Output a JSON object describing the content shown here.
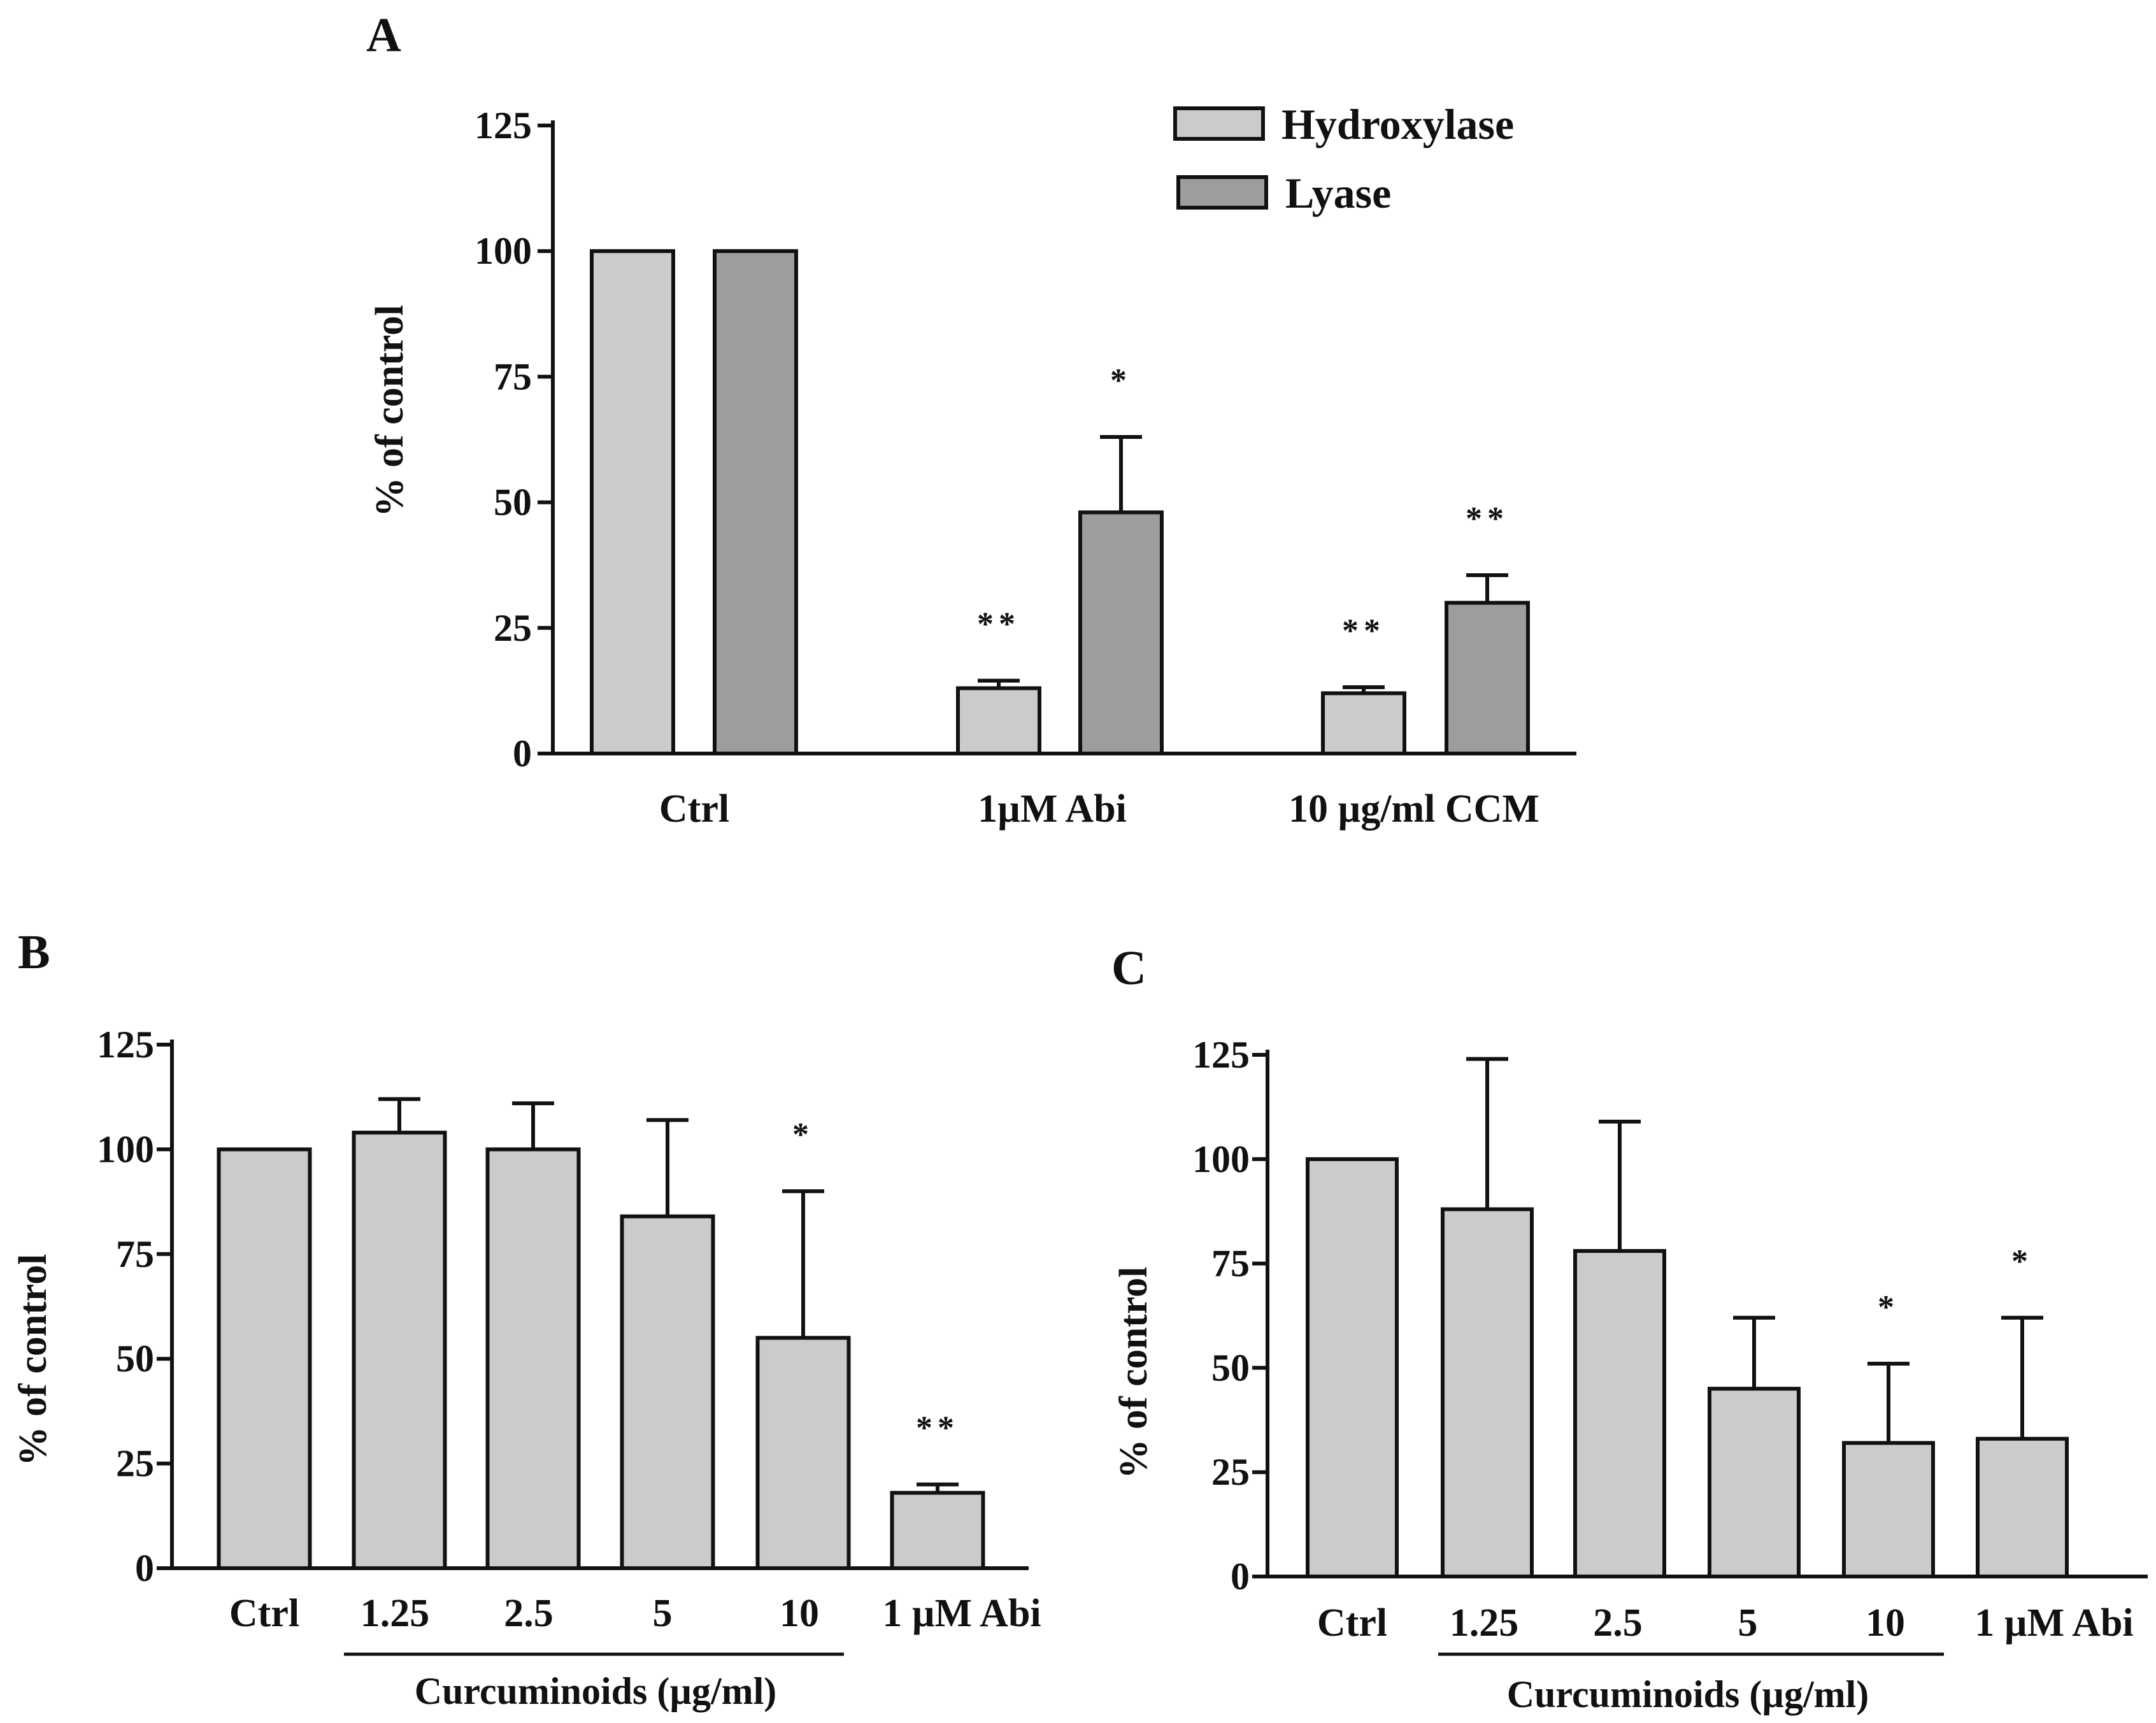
{
  "colors": {
    "hydroxylase": "#cbcbcb",
    "lyase": "#9d9d9d",
    "axis": "#111111"
  },
  "chart_data": [
    {
      "panel": "A",
      "type": "bar",
      "ylabel": "% of control",
      "ylim": [
        0,
        125
      ],
      "yticks": [
        "0",
        "25",
        "50",
        "75",
        "100",
        "125"
      ],
      "categories": [
        "Ctrl",
        "1µM Abi",
        "10 µg/ml CCM"
      ],
      "legend_position": "top-right",
      "series": [
        {
          "name": "Hydroxylase",
          "values": [
            100,
            13,
            12
          ],
          "errors": [
            0,
            1.5,
            1.2
          ],
          "annotations": [
            "",
            "**",
            "**"
          ]
        },
        {
          "name": "Lyase",
          "values": [
            100,
            48,
            30
          ],
          "errors": [
            0,
            15,
            5.5
          ],
          "annotations": [
            "",
            "*",
            "**"
          ]
        }
      ]
    },
    {
      "panel": "B",
      "type": "bar",
      "ylabel": "% of control",
      "ylim": [
        0,
        125
      ],
      "yticks": [
        "0",
        "25",
        "50",
        "75",
        "100",
        "125"
      ],
      "categories": [
        "Ctrl",
        "1.25",
        "2.5",
        "5",
        "10",
        "1 µM Abi"
      ],
      "group_label": "Curcuminoids (µg/ml)",
      "series": [
        {
          "name": "",
          "values": [
            100,
            104,
            100,
            84,
            55,
            18
          ],
          "errors": [
            0,
            8,
            11,
            23,
            35,
            2
          ],
          "annotations": [
            "",
            "",
            "",
            "",
            "*",
            "**"
          ]
        }
      ]
    },
    {
      "panel": "C",
      "type": "bar",
      "ylabel": "% of control",
      "ylim": [
        0,
        125
      ],
      "yticks": [
        "0",
        "25",
        "50",
        "75",
        "100",
        "125"
      ],
      "categories": [
        "Ctrl",
        "1.25",
        "2.5",
        "5",
        "10",
        "1 µM Abi"
      ],
      "group_label": "Curcuminoids (µg/ml)",
      "series": [
        {
          "name": "",
          "values": [
            100,
            88,
            78,
            45,
            32,
            33
          ],
          "errors": [
            0,
            36,
            31,
            17,
            19,
            29
          ],
          "annotations": [
            "",
            "",
            "",
            "",
            "*",
            "*"
          ]
        }
      ]
    }
  ]
}
